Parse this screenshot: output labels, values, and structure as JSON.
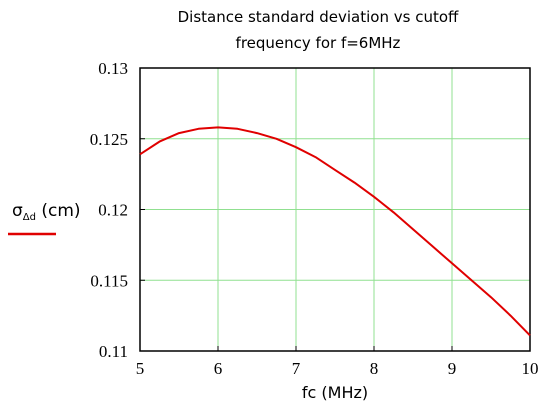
{
  "chart_data": {
    "type": "line",
    "title_lines": [
      "Distance standard deviation vs cutoff",
      "frequency for f=6MHz"
    ],
    "xlabel": "fc (MHz)",
    "ylabel": {
      "symbol": "σ",
      "subscript": "Δd",
      "unit": " (cm)"
    },
    "xlim": [
      5,
      10
    ],
    "ylim": [
      0.11,
      0.13
    ],
    "x_ticks": [
      "5",
      "6",
      "7",
      "8",
      "9",
      "10"
    ],
    "y_ticks": [
      "0.11",
      "0.115",
      "0.12",
      "0.125",
      "0.13"
    ],
    "grid": true,
    "series": [
      {
        "color": "#e00000",
        "x": [
          5.0,
          5.25,
          5.5,
          5.75,
          6.0,
          6.25,
          6.5,
          6.75,
          7.0,
          7.25,
          7.5,
          7.75,
          8.0,
          8.25,
          8.5,
          8.75,
          9.0,
          9.25,
          9.5,
          9.75,
          10.0
        ],
        "y": [
          0.1239,
          0.1248,
          0.1254,
          0.1257,
          0.1258,
          0.1257,
          0.1254,
          0.125,
          0.1244,
          0.1237,
          0.1228,
          0.1219,
          0.1209,
          0.1198,
          0.1186,
          0.1174,
          0.1162,
          0.115,
          0.1138,
          0.1125,
          0.1111
        ]
      }
    ],
    "colors": {
      "grid": "#90e090",
      "line": "#e00000",
      "frame": "#000000"
    }
  }
}
